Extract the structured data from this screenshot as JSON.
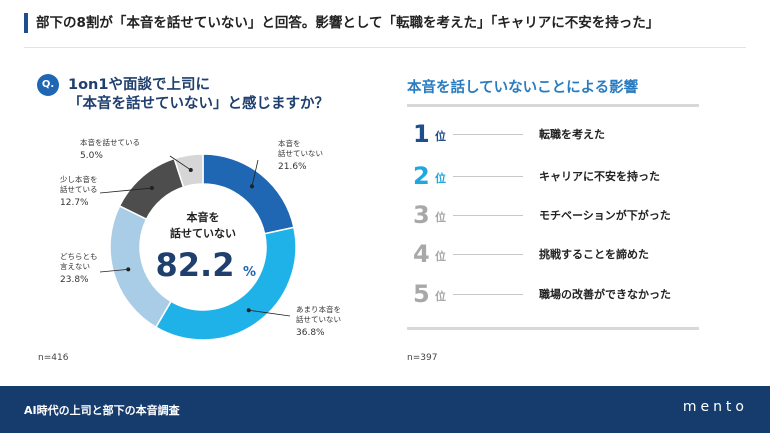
{
  "header": {
    "title": "部下の8割が「本音を話せていない」と回答。影響として「転職を考えた」「キャリアに不安を持った」"
  },
  "question": {
    "badge": "Q.",
    "line1": "1on1や面談で上司に",
    "line2": "「本音を話せていない」と感じますか？"
  },
  "chart_data": [
    {
      "type": "pie",
      "style": "donut",
      "categories": [
        "本音を話せていない",
        "あまり本音を話せていない",
        "どちらとも言えない",
        "少し本音を話せている",
        "本音を話せている"
      ],
      "values": [
        21.6,
        36.8,
        23.8,
        12.7,
        5.0
      ],
      "colors": [
        "#1f66b3",
        "#1fb2e8",
        "#a9cde6",
        "#4d4d4d",
        "#d6d6d6"
      ],
      "value_labels": [
        "21.6%",
        "36.8%",
        "23.8%",
        "12.7%",
        "5.0%"
      ],
      "label_lines": [
        [
          "本音を",
          "話せていない"
        ],
        [
          "あまり本音を",
          "話せていない"
        ],
        [
          "どちらとも",
          "言えない"
        ],
        [
          "少し本音を",
          "話せている"
        ],
        [
          "本音を話せている"
        ]
      ],
      "center": {
        "line1": "本音を",
        "line2": "話せていない",
        "value": "82.2",
        "unit": "%"
      },
      "n": "n=416"
    },
    {
      "type": "table",
      "title": "本音を話していないことによる影響",
      "rank_unit": "位",
      "rows": [
        {
          "rank": "1",
          "label": "転職を考えた",
          "color": "#1f4e8c"
        },
        {
          "rank": "2",
          "label": "キャリアに不安を持った",
          "color": "#1fa8e0"
        },
        {
          "rank": "3",
          "label": "モチベーションが下がった",
          "color": "#a8a8a8"
        },
        {
          "rank": "4",
          "label": "挑戦することを諦めた",
          "color": "#a8a8a8"
        },
        {
          "rank": "5",
          "label": "職場の改善ができなかった",
          "color": "#a8a8a8"
        }
      ],
      "n": "n=397"
    }
  ],
  "footer": {
    "text": "AI時代の上司と部下の本音調査",
    "logo": "mento"
  }
}
